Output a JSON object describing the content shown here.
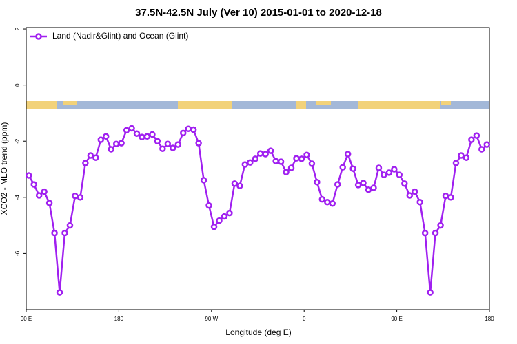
{
  "chart_data": {
    "type": "line",
    "title": "37.5N-42.5N July (Ver 10)   2015-01-01 to 2020-12-18",
    "x_label": "Longitude (deg E)",
    "y_label": "XCO2 - MLO trend (ppm)",
    "x": [
      92.5,
      97.5,
      102.5,
      107.5,
      112.5,
      117.5,
      122.5,
      127.5,
      132.5,
      137.5,
      142.5,
      147.5,
      152.5,
      157.5,
      162.5,
      167.5,
      172.5,
      177.5,
      182.5,
      187.5,
      192.5,
      197.5,
      202.5,
      207.5,
      212.5,
      217.5,
      222.5,
      227.5,
      232.5,
      237.5,
      242.5,
      247.5,
      252.5,
      257.5,
      262.5,
      267.5,
      272.5,
      277.5,
      282.5,
      287.5,
      292.5,
      297.5,
      302.5,
      307.5,
      312.5,
      317.5,
      322.5,
      327.5,
      332.5,
      337.5,
      342.5,
      347.5,
      352.5,
      357.5,
      362.5,
      367.5,
      372.5,
      377.5,
      382.5,
      387.5,
      392.5,
      397.5,
      402.5,
      407.5,
      412.5,
      417.5,
      422.5,
      427.5,
      432.5,
      437.5,
      442.5,
      447.5,
      452.5,
      457.5,
      462.5,
      467.5,
      472.5,
      477.5,
      482.5,
      487.5,
      492.5,
      497.5,
      502.5,
      507.5,
      512.5,
      517.5,
      522.5,
      527.5,
      532.5,
      537.5
    ],
    "series": [
      {
        "name": "Land (Nadir&Glint) and Ocean (Glint)",
        "color": "#a020f0",
        "values": [
          -3.22,
          -3.54,
          -3.93,
          -3.8,
          -4.2,
          -5.27,
          -7.39,
          -5.27,
          -5.0,
          -3.95,
          -4.0,
          -2.78,
          -2.51,
          -2.59,
          -1.95,
          -1.83,
          -2.29,
          -2.1,
          -2.07,
          -1.61,
          -1.54,
          -1.73,
          -1.85,
          -1.83,
          -1.76,
          -2.0,
          -2.27,
          -2.1,
          -2.24,
          -2.12,
          -1.71,
          -1.56,
          -1.59,
          -2.07,
          -3.39,
          -4.29,
          -5.05,
          -4.83,
          -4.68,
          -4.56,
          -3.51,
          -3.59,
          -2.83,
          -2.76,
          -2.63,
          -2.44,
          -2.46,
          -2.34,
          -2.71,
          -2.73,
          -3.1,
          -2.95,
          -2.61,
          -2.63,
          -2.49,
          -2.8,
          -3.46,
          -4.07,
          -4.17,
          -4.22,
          -3.54,
          -2.93,
          -2.46,
          -2.98,
          -3.56,
          -3.49,
          -3.73,
          -3.66,
          -2.95,
          -3.2,
          -3.12,
          -3.0,
          -3.2,
          -3.51,
          -3.93,
          -3.8,
          -4.17,
          -5.27,
          -7.39,
          -5.27,
          -5.0,
          -3.95,
          -4.0,
          -2.78,
          -2.51,
          -2.59,
          -1.95,
          -1.8,
          -2.29,
          -2.12
        ]
      }
    ],
    "xlim": [
      90,
      540
    ],
    "xticks": [
      {
        "value": 90,
        "label": "90 E"
      },
      180,
      {
        "value": 270,
        "label": "90 W"
      },
      {
        "value": 360,
        "label": "0"
      },
      {
        "value": 450,
        "label": "90 E"
      },
      {
        "value": 540,
        "label": "180"
      }
    ],
    "ylim": [
      -8,
      2.05
    ],
    "yticks": [
      2,
      0,
      -2,
      -4,
      -6
    ],
    "legend": "top-left"
  }
}
